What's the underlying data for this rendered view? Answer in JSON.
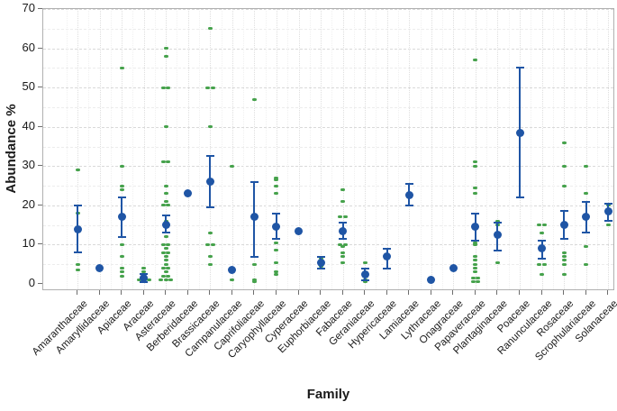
{
  "figure": {
    "background": "#ffffff",
    "accent_blue": "#1f55a5",
    "accent_green": "#46a24c",
    "gridline_color": "#d9d9d9",
    "y_axis_title": "Abundance %",
    "x_axis_title": "Family"
  },
  "chart_data": {
    "type": "scatter",
    "subtype": "interval-plot-with-individual-points",
    "title": "",
    "ylabel": "Abundance %",
    "xlabel": "Family",
    "ylim": [
      0,
      70
    ],
    "yticks": [
      0,
      10,
      20,
      30,
      40,
      50,
      60,
      70
    ],
    "grid": "horizontal dashed major (10) + minor (5), vertical dotted per category",
    "legend": "none",
    "series": [
      {
        "name": "mean with 95% CI",
        "marker": "blue filled circle with vertical error bar"
      },
      {
        "name": "individual observations",
        "marker": "small green dash"
      }
    ],
    "families": [
      {
        "name": "Amaranthaceae",
        "mean": 14,
        "ci": [
          8,
          20
        ],
        "points": [
          29,
          18,
          5,
          3.5
        ]
      },
      {
        "name": "Amaryllidaceae",
        "mean": 4,
        "ci": null,
        "points": []
      },
      {
        "name": "Apiaceae",
        "mean": 17,
        "ci": [
          12,
          22
        ],
        "points": [
          55,
          30,
          25,
          24,
          10,
          7,
          4,
          3,
          2
        ]
      },
      {
        "name": "Araceae",
        "mean": 1.5,
        "ci": [
          0.5,
          2.5
        ],
        "points": [
          4,
          3,
          1,
          1,
          1
        ]
      },
      {
        "name": "Asteraceae",
        "mean": 15,
        "ci": [
          13,
          17.5
        ],
        "points": [
          60,
          58,
          50,
          50,
          40,
          31,
          31,
          25,
          23,
          21,
          20,
          20,
          16,
          12,
          10,
          10,
          9,
          8,
          8,
          7,
          6,
          5,
          4,
          4,
          3,
          2,
          2,
          1,
          1,
          1
        ]
      },
      {
        "name": "Berberidaceae",
        "mean": 23,
        "ci": null,
        "points": []
      },
      {
        "name": "Brassicaceae",
        "mean": 26,
        "ci": [
          19.5,
          32.5
        ],
        "points": [
          65,
          50,
          50,
          40,
          13,
          10,
          10,
          7,
          5
        ]
      },
      {
        "name": "Campanulaceae",
        "mean": 3.5,
        "ci": null,
        "points": [
          30,
          1
        ]
      },
      {
        "name": "Caprifoliaceae",
        "mean": 17,
        "ci": [
          7,
          26
        ],
        "points": [
          47,
          5,
          1,
          0.5
        ]
      },
      {
        "name": "Caryophyllaceae",
        "mean": 14.5,
        "ci": [
          11.5,
          18
        ],
        "points": [
          27,
          26.5,
          25,
          23,
          10.5,
          8.5,
          5.5,
          3,
          2.5
        ]
      },
      {
        "name": "Cyperaceae",
        "mean": 13.5,
        "ci": null,
        "points": []
      },
      {
        "name": "Euphorbiaceae",
        "mean": 5.5,
        "ci": [
          4,
          7
        ],
        "points": [
          6.5,
          4.5
        ]
      },
      {
        "name": "Fabaceae",
        "mean": 13.5,
        "ci": [
          11.5,
          15.5
        ],
        "points": [
          24,
          21,
          17,
          17,
          10,
          10,
          9.5,
          8,
          7,
          5.5
        ]
      },
      {
        "name": "Geraniaceae",
        "mean": 2.5,
        "ci": [
          1,
          4
        ],
        "points": [
          5.5,
          1,
          0.5
        ]
      },
      {
        "name": "Hypericaceae",
        "mean": 7,
        "ci": [
          4,
          9
        ],
        "points": []
      },
      {
        "name": "Lamiaceae",
        "mean": 22.5,
        "ci": [
          20,
          25.5
        ],
        "points": []
      },
      {
        "name": "Lythraceae",
        "mean": 1,
        "ci": null,
        "points": []
      },
      {
        "name": "Onagraceae",
        "mean": 4,
        "ci": null,
        "points": []
      },
      {
        "name": "Papaveraceae",
        "mean": 14.5,
        "ci": [
          11,
          18
        ],
        "points": [
          57,
          31,
          30,
          24.5,
          23,
          10.5,
          10,
          7,
          6,
          5,
          4,
          3,
          1.5,
          1.5,
          0.5,
          0.5
        ]
      },
      {
        "name": "Plantaginaceae",
        "mean": 12.5,
        "ci": [
          8.5,
          15.5
        ],
        "points": [
          16,
          15,
          5.5
        ]
      },
      {
        "name": "Poaceae",
        "mean": 38.5,
        "ci": [
          22,
          55
        ],
        "points": []
      },
      {
        "name": "Ranunculaceae",
        "mean": 9,
        "ci": [
          6.5,
          11
        ],
        "points": [
          15,
          15,
          13,
          5,
          5,
          2.5
        ]
      },
      {
        "name": "Rosaceae",
        "mean": 15,
        "ci": [
          11.5,
          18.5
        ],
        "points": [
          36,
          30,
          25,
          8,
          7,
          6,
          5,
          2.5
        ]
      },
      {
        "name": "Scrophulariaceae",
        "mean": 17,
        "ci": [
          13,
          21
        ],
        "points": [
          30,
          23,
          9.5,
          5
        ]
      },
      {
        "name": "Solanaceae",
        "mean": 18.5,
        "ci": [
          16,
          20.5
        ],
        "points": [
          20,
          15
        ]
      }
    ]
  }
}
